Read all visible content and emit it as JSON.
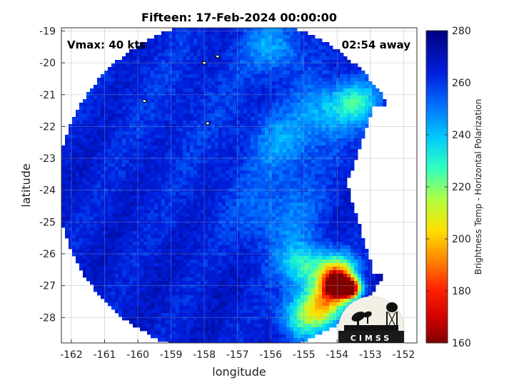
{
  "chart_data": {
    "type": "heatmap",
    "title": "Fifteen: 17-Feb-2024 00:00:00",
    "xlabel": "longitude",
    "ylabel": "latitude",
    "xlim": [
      -162.3,
      -151.6
    ],
    "ylim": [
      -28.8,
      -18.9
    ],
    "xticks": [
      -162,
      -161,
      -160,
      -159,
      -158,
      -157,
      -156,
      -155,
      -154,
      -153,
      -152
    ],
    "yticks": [
      -19,
      -20,
      -21,
      -22,
      -23,
      -24,
      -25,
      -26,
      -27,
      -28
    ],
    "grid": true,
    "annotations": {
      "intensity": "Vmax: 40 kts",
      "time_offset": "02:54 away"
    },
    "colorbar": {
      "label": "Brightness Temp - Horizontal Polarization",
      "range": [
        160,
        280
      ],
      "ticks": [
        160,
        180,
        200,
        220,
        240,
        260,
        280
      ]
    },
    "swath": {
      "center": [
        -157.1,
        -23.9
      ],
      "radius_deg": 5.3,
      "cut_edge": [
        [
          -152.9,
          -21.4
        ],
        [
          -153.7,
          -23.8
        ],
        [
          -152.9,
          -26.6
        ]
      ]
    },
    "field_features": [
      {
        "lon": -157.8,
        "lat": -22.0,
        "value": 262,
        "sigma": 2.6
      },
      {
        "lon": -159.0,
        "lat": -20.5,
        "value": 264,
        "sigma": 1.8
      },
      {
        "lon": -155.5,
        "lat": -22.5,
        "value": 248,
        "sigma": 0.7
      },
      {
        "lon": -154.3,
        "lat": -21.5,
        "value": 244,
        "sigma": 0.6
      },
      {
        "lon": -153.4,
        "lat": -21.2,
        "value": 236,
        "sigma": 0.5
      },
      {
        "lon": -155.7,
        "lat": -24.8,
        "value": 250,
        "sigma": 0.9
      },
      {
        "lon": -155.9,
        "lat": -19.5,
        "value": 245,
        "sigma": 0.6
      },
      {
        "lon": -155.0,
        "lat": -26.4,
        "value": 232,
        "sigma": 0.5
      },
      {
        "lon": -154.0,
        "lat": -26.6,
        "value": 205,
        "sigma": 0.4
      },
      {
        "lon": -154.3,
        "lat": -27.5,
        "value": 212,
        "sigma": 0.45
      },
      {
        "lon": -155.0,
        "lat": -28.0,
        "value": 225,
        "sigma": 0.5
      },
      {
        "lon": -154.0,
        "lat": -27.0,
        "value": 172,
        "sigma": 0.25
      },
      {
        "lon": -153.6,
        "lat": -27.1,
        "value": 174,
        "sigma": 0.22
      }
    ],
    "background_value": 266,
    "islands": [
      {
        "lon": -157.6,
        "lat": -19.8
      },
      {
        "lon": -158.0,
        "lat": -20.0
      },
      {
        "lon": -159.8,
        "lat": -21.2
      },
      {
        "lon": -157.9,
        "lat": -21.9
      }
    ]
  },
  "logo": {
    "text": "CIMSS"
  }
}
